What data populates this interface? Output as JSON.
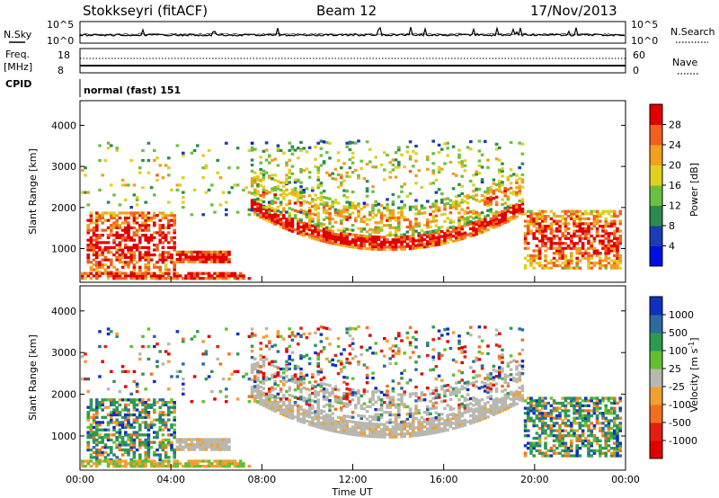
{
  "header": {
    "station": "Stokkseyri (fitACF)",
    "beam": "Beam 12",
    "date": "17/Nov/2013"
  },
  "noise_panel": {
    "left_label": "N.Sky",
    "right_label": "N.Search",
    "left_ticks": [
      "10^5",
      "10^0"
    ],
    "right_ticks": [
      "10^5",
      "10^0"
    ]
  },
  "freq_panel": {
    "left_label_top": "Freq.",
    "left_label_unit": "[MHz]",
    "right_label": "Nave",
    "left_ticks": [
      "18",
      "8"
    ],
    "right_ticks": [
      "60",
      "0"
    ]
  },
  "cpid": {
    "label": "CPID",
    "value": "normal (fast) 151"
  },
  "chart_data": [
    {
      "type": "heatmap",
      "name": "power",
      "ylabel": "Slant Range [km]",
      "ylim": [
        180,
        4600
      ],
      "yticks": [
        1000,
        2000,
        3000,
        4000
      ],
      "xlabel": "",
      "xlim_hours": [
        0,
        24
      ],
      "colorbar": {
        "label": "Power [dB]",
        "range": [
          0,
          32
        ],
        "ticks": [
          "4",
          "8",
          "12",
          "16",
          "20",
          "24",
          "28"
        ],
        "colors": [
          "#0010e0",
          "#1a3cb4",
          "#2c8a50",
          "#6cc040",
          "#e0d020",
          "#f0a020",
          "#f06020",
          "#e00000"
        ]
      }
    },
    {
      "type": "heatmap",
      "name": "velocity",
      "ylabel": "Slant Range [km]",
      "ylim": [
        180,
        4600
      ],
      "yticks": [
        1000,
        2000,
        3000,
        4000
      ],
      "xlabel": "Time UT",
      "xlim_hours": [
        0,
        24
      ],
      "xticks": [
        "00:00",
        "04:00",
        "08:00",
        "12:00",
        "16:00",
        "20:00",
        "00:00"
      ],
      "colorbar": {
        "label": "Velocity [m s",
        "label_sup": "-1",
        "label_end": "]",
        "ticks": [
          "1000",
          "500",
          "100",
          "25",
          "-25",
          "-100",
          "-500",
          "-1000"
        ],
        "colors": [
          "#1030c0",
          "#2c6aa0",
          "#2c9a50",
          "#60c030",
          "#b8b8b0",
          "#f0a030",
          "#f07020",
          "#e02010",
          "#e00000"
        ]
      }
    }
  ]
}
